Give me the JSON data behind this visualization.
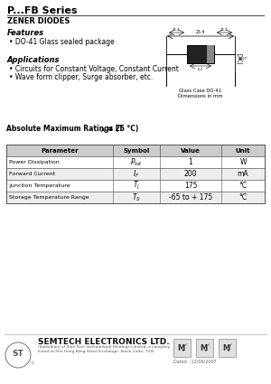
{
  "title": "P...FB Series",
  "subtitle": "ZENER DIODES",
  "features_title": "Features",
  "features": [
    "DO-41 Glass sealed package"
  ],
  "applications_title": "Applications",
  "applications": [
    "Circuits for Constant Voltage, Constant Current",
    "Wave form clipper, Surge absorber, etc."
  ],
  "table_title": "Absolute Maximum Ratings (T",
  "table_title2": " = 25 °C)",
  "table_headers": [
    "Parameter",
    "Symbol",
    "Value",
    "Unit"
  ],
  "row_params": [
    "Power Dissipation",
    "Forward Current",
    "Junction Temperature",
    "Storage Temperature Range"
  ],
  "row_symbols": [
    "P_tot",
    "I_F",
    "T_j",
    "T_S"
  ],
  "row_values": [
    "1",
    "200",
    "175",
    "-65 to + 175"
  ],
  "row_units": [
    "W",
    "mA",
    "°C",
    "°C"
  ],
  "footer_company": "SEMTECH ELECTRONICS LTD.",
  "footer_sub1": "(Subsidiary of Sino Tech International Holdings Limited, a company",
  "footer_sub2": "listed on the Hong Kong Stock Exchange, Stock Code: 724)",
  "footer_date": "Dated : 12/06/2007",
  "bg_color": "#ffffff",
  "text_color": "#000000",
  "line_color": "#444444",
  "table_header_bg": "#cccccc",
  "row_bg1": "#ffffff",
  "row_bg2": "#eeeeee",
  "border_color": "#555555",
  "diagram_caption1": "Glass Case DO-41",
  "diagram_caption2": "Dimensions in mm"
}
